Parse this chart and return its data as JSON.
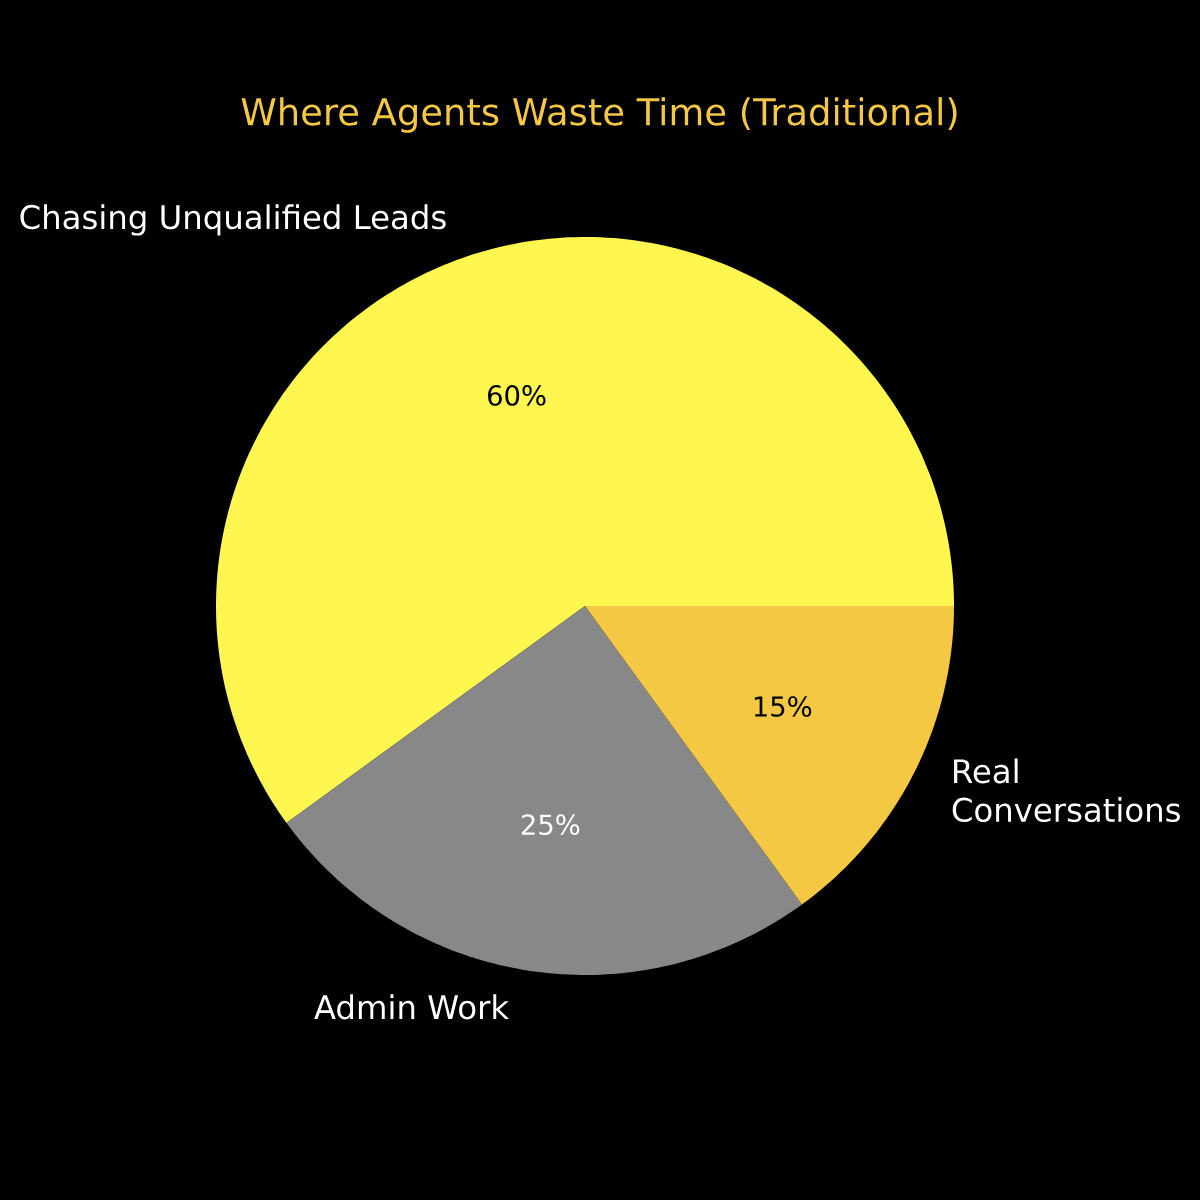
{
  "chart_data": {
    "type": "pie",
    "title": "Where Agents Waste Time (Traditional)",
    "categories": [
      "Chasing Unqualified Leads",
      "Admin Work",
      "Real Conversations"
    ],
    "values": [
      60,
      25,
      15
    ],
    "colors": [
      "#fff74f",
      "#888888",
      "#f5c844"
    ],
    "value_labels": [
      "60%",
      "25%",
      "15%"
    ]
  }
}
